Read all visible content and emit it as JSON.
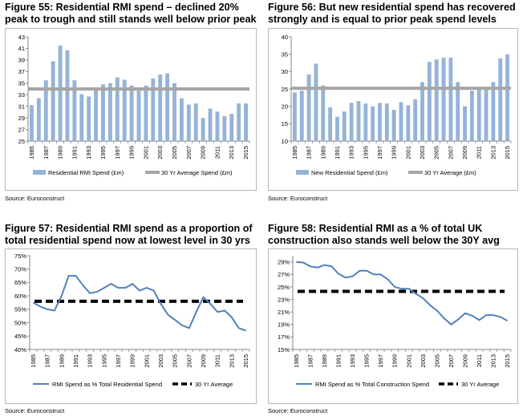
{
  "chart_data": [
    {
      "id": "fig55",
      "type": "bar",
      "title": "Figure 55: Residential RMI spend – declined 20%\npeak to trough and still stands well below prior peak",
      "source": "Source: Euroconstruct",
      "years": [
        1985,
        1986,
        1987,
        1988,
        1989,
        1990,
        1991,
        1992,
        1993,
        1994,
        1995,
        1996,
        1997,
        1998,
        1999,
        2000,
        2001,
        2002,
        2003,
        2004,
        2005,
        2006,
        2007,
        2008,
        2009,
        2010,
        2011,
        2012,
        2013,
        2014,
        2015
      ],
      "series": [
        {
          "name": "Residential RMI Spend (£m)",
          "type": "bar",
          "color": "#95b3d7",
          "values": [
            31.2,
            32.4,
            35.5,
            38.8,
            41.5,
            40.7,
            35.5,
            33.1,
            32.7,
            34.0,
            34.8,
            35.0,
            36.0,
            35.6,
            34.6,
            34.3,
            34.6,
            35.8,
            36.5,
            36.7,
            35.0,
            32.4,
            31.3,
            31.5,
            29.0,
            30.6,
            30.1,
            29.3,
            29.7,
            31.5,
            31.5
          ]
        },
        {
          "name": "30 Yr Average Spend (£m)",
          "type": "line",
          "color": "#a6a6a6",
          "value": 34.0
        }
      ],
      "ylim": [
        25,
        43
      ],
      "yticks": [
        "25",
        "27",
        "29",
        "31",
        "33",
        "35",
        "37",
        "39",
        "41",
        "43"
      ],
      "xticks": [
        "1985",
        "1987",
        "1989",
        "1991",
        "1993",
        "1995",
        "1997",
        "1999",
        "2001",
        "2003",
        "2005",
        "2007",
        "2009",
        "2011",
        "2013",
        "2015"
      ],
      "legend_position": "bottom",
      "grid": false
    },
    {
      "id": "fig56",
      "type": "bar",
      "title": "Figure 56: But new residential spend has recovered\nstrongly and is equal to prior peak spend levels",
      "source": "Source: Euroconstruct",
      "years": [
        1985,
        1986,
        1987,
        1988,
        1989,
        1990,
        1991,
        1992,
        1993,
        1994,
        1995,
        1996,
        1997,
        1998,
        1999,
        2000,
        2001,
        2002,
        2003,
        2004,
        2005,
        2006,
        2007,
        2008,
        2009,
        2010,
        2011,
        2012,
        2013,
        2014,
        2015
      ],
      "series": [
        {
          "name": "New Residential Spend (£m)",
          "type": "bar",
          "color": "#95b3d7",
          "values": [
            24.0,
            24.5,
            29.2,
            32.3,
            26.0,
            19.7,
            17.0,
            18.5,
            21.0,
            21.5,
            20.8,
            20.0,
            21.0,
            20.8,
            19.0,
            21.2,
            20.3,
            22.0,
            27.0,
            32.8,
            33.5,
            34.0,
            34.0,
            27.0,
            20.0,
            24.5,
            25.0,
            24.8,
            27.0,
            33.8,
            35.0
          ]
        },
        {
          "name": "30 Yr Average (£m)",
          "type": "line",
          "color": "#a6a6a6",
          "value": 25.2
        }
      ],
      "ylim": [
        10,
        40
      ],
      "yticks": [
        "10",
        "15",
        "20",
        "25",
        "30",
        "35",
        "40"
      ],
      "xticks": [
        "1985",
        "1987",
        "1989",
        "1991",
        "1993",
        "1995",
        "1997",
        "1999",
        "2001",
        "2003",
        "2005",
        "2007",
        "2009",
        "2011",
        "2013",
        "2015"
      ],
      "legend_position": "bottom",
      "grid": false
    },
    {
      "id": "fig57",
      "type": "line",
      "title": "Figure 57: Residential RMI spend as a proportion of\ntotal residential spend now at lowest level in 30 yrs",
      "source": "Source: Euroconstruct",
      "years": [
        1985,
        1986,
        1987,
        1988,
        1989,
        1990,
        1991,
        1992,
        1993,
        1994,
        1995,
        1996,
        1997,
        1998,
        1999,
        2000,
        2001,
        2002,
        2003,
        2004,
        2005,
        2006,
        2007,
        2008,
        2009,
        2010,
        2011,
        2012,
        2013,
        2014,
        2015
      ],
      "series": [
        {
          "name": "RMI Spend as % Total Residential Spend",
          "type": "line",
          "color": "#4f81bd",
          "values": [
            57.5,
            56.0,
            55.0,
            54.5,
            60.0,
            67.5,
            67.5,
            64.0,
            61.0,
            61.5,
            63.0,
            64.5,
            63.0,
            63.0,
            64.5,
            62.0,
            63.0,
            62.0,
            57.0,
            53.0,
            51.0,
            49.0,
            48.0,
            54.0,
            59.5,
            57.0,
            54.0,
            54.5,
            52.0,
            48.0,
            47.0
          ]
        },
        {
          "name": "30 Yr Average",
          "type": "dashed",
          "color": "#000000",
          "value": 58.0
        }
      ],
      "ylim": [
        40,
        75
      ],
      "yticks": [
        "40%",
        "45%",
        "50%",
        "55%",
        "60%",
        "65%",
        "70%",
        "75%"
      ],
      "xticks": [
        "1985",
        "1987",
        "1989",
        "1991",
        "1993",
        "1995",
        "1997",
        "1999",
        "2001",
        "2003",
        "2005",
        "2007",
        "2009",
        "2011",
        "2013",
        "2015"
      ],
      "legend_position": "bottom",
      "grid": false
    },
    {
      "id": "fig58",
      "type": "line",
      "title": "Figure 58: Residential RMI as a % of total UK\nconstruction also stands well below the 30Y avg",
      "source": "Source: Euroconstruct",
      "years": [
        1985,
        1986,
        1987,
        1988,
        1989,
        1990,
        1991,
        1992,
        1993,
        1994,
        1995,
        1996,
        1997,
        1998,
        1999,
        2000,
        2001,
        2002,
        2003,
        2004,
        2005,
        2006,
        2007,
        2008,
        2009,
        2010,
        2011,
        2012,
        2013,
        2014,
        2015
      ],
      "series": [
        {
          "name": "RMI Spend as % Total Construction Spend",
          "type": "line",
          "color": "#4f81bd",
          "values": [
            29.0,
            28.9,
            28.3,
            28.1,
            28.5,
            28.3,
            27.1,
            26.5,
            26.7,
            27.6,
            27.6,
            27.0,
            27.0,
            26.2,
            25.0,
            24.7,
            24.7,
            23.9,
            23.2,
            22.1,
            21.2,
            20.0,
            19.0,
            19.8,
            20.8,
            20.4,
            19.7,
            20.5,
            20.5,
            20.2,
            19.6
          ]
        },
        {
          "name": "30 Yr Average",
          "type": "dashed",
          "color": "#000000",
          "value": 24.3
        }
      ],
      "ylim": [
        15,
        30
      ],
      "yticks": [
        "15%",
        "17%",
        "19%",
        "21%",
        "23%",
        "25%",
        "27%",
        "29%"
      ],
      "ytick_values": [
        15,
        17,
        19,
        21,
        23,
        25,
        27,
        29
      ],
      "xticks": [
        "1985",
        "1987",
        "1989",
        "1991",
        "1993",
        "1995",
        "1997",
        "1999",
        "2001",
        "2003",
        "2005",
        "2007",
        "2009",
        "2011",
        "2013",
        "2015"
      ],
      "legend_position": "bottom",
      "grid": false
    }
  ]
}
